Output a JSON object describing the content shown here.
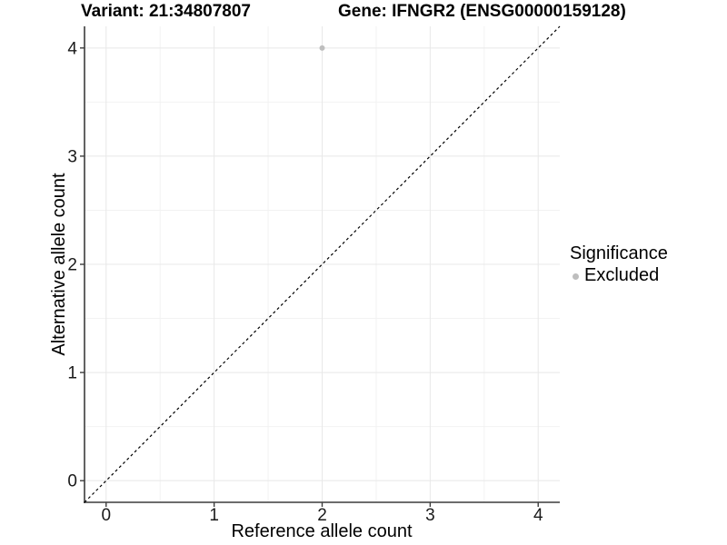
{
  "chart_data": {
    "type": "scatter",
    "titles": {
      "left": "Variant: 21:34807807",
      "right": "Gene: IFNGR2 (ENSG00000159128)"
    },
    "xlabel": "Reference allele count",
    "ylabel": "Alternative allele count",
    "xlim": [
      -0.2,
      4.2
    ],
    "ylim": [
      -0.2,
      4.2
    ],
    "x_ticks": [
      0,
      1,
      2,
      3,
      4
    ],
    "y_ticks": [
      0,
      1,
      2,
      3,
      4
    ],
    "x_minor_ticks": [
      0.5,
      1.5,
      2.5,
      3.5
    ],
    "y_minor_ticks": [
      0.5,
      1.5,
      2.5,
      3.5
    ],
    "grid": "major and minor, light gray on white",
    "legend": {
      "title": "Significance",
      "position": "right",
      "entries": [
        {
          "label": "Excluded",
          "color": "#bebebe"
        }
      ]
    },
    "series": [
      {
        "name": "Excluded",
        "color": "#bebebe",
        "marker": "circle",
        "points": [
          {
            "x": 2,
            "y": 4
          }
        ]
      }
    ],
    "reference_line": {
      "type": "identity",
      "equation": "y = x",
      "style": "dashed",
      "color": "#000000"
    }
  },
  "colors": {
    "background": "#ffffff",
    "grid_major": "#e8e8e8",
    "grid_minor": "#f2f2f2",
    "axis_line": "#3c3c3c",
    "tick_text": "#1a1a1a",
    "point": "#bebebe"
  }
}
